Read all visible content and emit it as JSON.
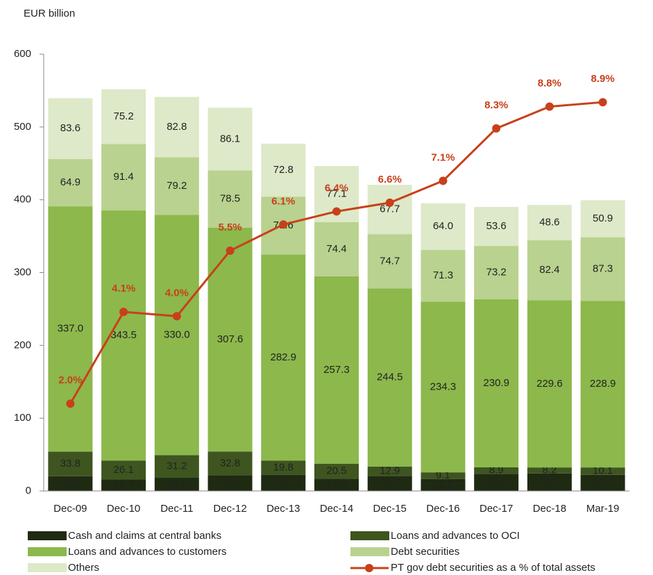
{
  "chart_data": {
    "type": "bar",
    "stacked": true,
    "ylabel": "EUR billion",
    "categories": [
      "Dec-09",
      "Dec-10",
      "Dec-11",
      "Dec-12",
      "Dec-13",
      "Dec-14",
      "Dec-15",
      "Dec-16",
      "Dec-17",
      "Dec-18",
      "Mar-19"
    ],
    "ylim": [
      0,
      600
    ],
    "yticks": [
      0,
      100,
      200,
      300,
      400,
      500,
      600
    ],
    "y2lim": [
      0,
      10
    ],
    "grid": false,
    "series": [
      {
        "name": "Cash and claims at central banks",
        "color": "#1f2a12",
        "values": [
          20.2,
          15.7,
          18.1,
          21.4,
          22.0,
          17.0,
          20.7,
          16.5,
          23.6,
          24.1,
          22.2
        ],
        "value_labels": [
          "20.2",
          "15.7",
          "18.1",
          "21.4",
          "22.0",
          "17.0",
          "20.7",
          "16.5",
          "23.6",
          "24.1",
          "22.2"
        ]
      },
      {
        "name": "Loans and advances to OCI",
        "color": "#3e5520",
        "values": [
          33.8,
          26.1,
          31.2,
          32.8,
          19.8,
          20.5,
          12.9,
          9.1,
          8.9,
          8.2,
          10.1
        ],
        "value_labels": [
          "33.8",
          "26.1",
          "31.2",
          "32.8",
          "19.8",
          "20.5",
          "12.9",
          "9.1",
          "8.9",
          "8.2",
          "10.1"
        ]
      },
      {
        "name": "Loans and advances to customers",
        "color": "#8cb84c",
        "values": [
          337.0,
          343.5,
          330.0,
          307.6,
          282.9,
          257.3,
          244.5,
          234.3,
          230.9,
          229.6,
          228.9
        ],
        "value_labels": [
          "337.0",
          "343.5",
          "330.0",
          "307.6",
          "282.9",
          "257.3",
          "244.5",
          "234.3",
          "230.9",
          "229.6",
          "228.9"
        ]
      },
      {
        "name": "Debt securities",
        "color": "#b9d28f",
        "values": [
          64.9,
          91.4,
          79.2,
          78.5,
          79.6,
          74.4,
          74.7,
          71.3,
          73.2,
          82.4,
          87.3
        ],
        "value_labels": [
          "64.9",
          "91.4",
          "79.2",
          "78.5",
          "79.6",
          "74.4",
          "74.7",
          "71.3",
          "73.2",
          "82.4",
          "87.3"
        ]
      },
      {
        "name": "Others",
        "color": "#dde9c8",
        "values": [
          83.6,
          75.2,
          82.8,
          86.1,
          72.8,
          77.1,
          67.7,
          64.0,
          53.6,
          48.6,
          50.9
        ],
        "value_labels": [
          "83.6",
          "75.2",
          "82.8",
          "86.1",
          "72.8",
          "77.1",
          "67.7",
          "64.0",
          "53.6",
          "48.6",
          "50.9"
        ]
      },
      {
        "name": "PT gov debt securities as a % of total assets",
        "type": "line",
        "axis": "y2",
        "color": "#c8401a",
        "values": [
          2.0,
          4.1,
          4.0,
          5.5,
          6.1,
          6.4,
          6.6,
          7.1,
          8.3,
          8.8,
          8.9
        ],
        "value_labels": [
          "2.0%",
          "4.1%",
          "4.0%",
          "5.5%",
          "6.1%",
          "6.4%",
          "6.6%",
          "7.1%",
          "8.3%",
          "8.8%",
          "8.9%"
        ]
      }
    ]
  }
}
